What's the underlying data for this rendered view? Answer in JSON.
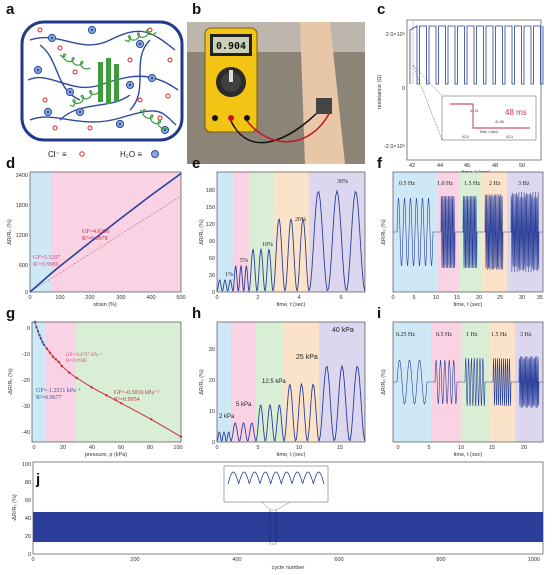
{
  "panels": {
    "a": {
      "label": "a",
      "legend_cl": "Cl⁻ ≡",
      "legend_h2o": "H₂O ≡"
    },
    "b": {
      "label": "b",
      "meter_reading": "0.904"
    },
    "c": {
      "label": "c",
      "ylabel": "resistance (Ω)",
      "xlabel": "time, t (sec)",
      "yticks": [
        "2.0×10⁵",
        "0",
        "-2.0×10⁵"
      ],
      "xticks": [
        "42",
        "44",
        "46",
        "48",
        "50"
      ],
      "inset_label": "48 ms",
      "inset_xticks": [
        "42.0",
        "42.3"
      ],
      "inset_xlabel": "time, t (sec)",
      "inset_marks": [
        "41.21",
        "41.96"
      ]
    },
    "d": {
      "label": "d",
      "ylabel": "ΔR/R₀ (%)",
      "xlabel": "strain (%)",
      "yticks": [
        "0",
        "600",
        "1200",
        "1800",
        "2400"
      ],
      "xticks": [
        "0",
        "100",
        "200",
        "300",
        "400",
        "500"
      ],
      "ann1_gf": "GF=5.3297",
      "ann1_r2": "R²=0.9986",
      "ann2_gf": "GF=4.6290",
      "ann2_r2": "R²=0.9978"
    },
    "e": {
      "label": "e",
      "ylabel": "ΔR/R₀ (%)",
      "xlabel": "time, t (sec)",
      "yticks": [
        "0",
        "30",
        "60",
        "90",
        "120",
        "150",
        "180"
      ],
      "xticks": [
        "0",
        "2",
        "4",
        "6"
      ],
      "levels": [
        "1%",
        "5%",
        "10%",
        "20%",
        "30%"
      ]
    },
    "f": {
      "label": "f",
      "ylabel": "ΔR/R₀ (%)",
      "xlabel": "time, t (sec)",
      "xticks": [
        "0",
        "5",
        "10",
        "15",
        "20",
        "25",
        "30",
        "35"
      ],
      "levels": [
        "0.5 Hz",
        "1.0 Hz",
        "1.5 Hz",
        "2 Hz",
        "3 Hz"
      ]
    },
    "g": {
      "label": "g",
      "ylabel": "-ΔR/R₀ (%)",
      "xlabel": "pressure, p (kPa)",
      "yticks": [
        "0",
        "-10",
        "-20",
        "-30",
        "-40"
      ],
      "xticks": [
        "0",
        "20",
        "40",
        "60",
        "80",
        "100"
      ],
      "ann1_gf": "GF=-1.2511 kPa⁻¹",
      "ann1_r2": "R²=0.9677",
      "ann2_gf": "GF=-0.4797 kPa⁻¹",
      "ann2_r2": "R²=0.9946",
      "ann3_gf": "GF=-0.3016 kPa⁻¹",
      "ann3_r2": "R²=0.9954"
    },
    "h": {
      "label": "h",
      "ylabel": "ΔR/R₀ (%)",
      "xlabel": "time, t (sec)",
      "yticks": [
        "0",
        "10",
        "20",
        "30"
      ],
      "xticks": [
        "0",
        "5",
        "10",
        "15"
      ],
      "levels": [
        "2 kPa",
        "5 kPa",
        "12.5 kPa",
        "25 kPa",
        "40 kPa"
      ]
    },
    "i": {
      "label": "i",
      "ylabel": "ΔR/R₀ (%)",
      "xlabel": "time, t (sec)",
      "xticks": [
        "0",
        "5",
        "10",
        "15",
        "20"
      ],
      "levels": [
        "0.25 Hz",
        "0.5 Hz",
        "1 Hz",
        "1.5 Hz",
        "3 Hz"
      ]
    },
    "j": {
      "label": "j",
      "ylabel": "-ΔR/R₀ (%)",
      "xlabel": "cycle number",
      "yticks": [
        "0",
        "20",
        "40",
        "60",
        "80",
        "100"
      ],
      "xticks": [
        "0",
        "200",
        "400",
        "600",
        "800",
        "1000"
      ]
    }
  },
  "colors": {
    "blue_band": "#cfe8f6",
    "pink_band": "#f9d3e3",
    "green_band": "#d9efd5",
    "orange_band": "#fbe3c9",
    "purple_band": "#dcd6ee",
    "signal": "#2b3f9a",
    "red_fit": "#c5283d",
    "pink_text": "#d04a85",
    "blue_text": "#3d4fa8"
  },
  "chart_data": [
    {
      "panel": "d",
      "type": "line",
      "xlabel": "strain (%)",
      "ylabel": "ΔR/R₀ (%)",
      "xlim": [
        0,
        500
      ],
      "ylim": [
        0,
        2400
      ],
      "x": [
        0,
        70,
        100,
        200,
        300,
        400,
        500
      ],
      "values": [
        0,
        370,
        520,
        1000,
        1470,
        1930,
        2370
      ]
    },
    {
      "panel": "g",
      "type": "scatter",
      "xlabel": "pressure, p (kPa)",
      "ylabel": "-ΔR/R₀ (%)",
      "xlim": [
        0,
        100
      ],
      "ylim": [
        -45,
        0
      ],
      "x": [
        2,
        3,
        4,
        5,
        6,
        7,
        8,
        10,
        12,
        14,
        16,
        18,
        20,
        25,
        30,
        40,
        50,
        60,
        80,
        100
      ],
      "values": [
        0,
        -2,
        -3.5,
        -5,
        -6.2,
        -7.5,
        -8.5,
        -10,
        -11.5,
        -13,
        -14,
        -15,
        -16.5,
        -19,
        -21,
        -24.5,
        -27.5,
        -30.5,
        -36.5,
        -43
      ]
    },
    {
      "panel": "e",
      "type": "line",
      "xlabel": "time, t (sec)",
      "ylabel": "ΔR/R₀ (%)",
      "series": [
        {
          "name": "1%",
          "peak": 20
        },
        {
          "name": "5%",
          "peak": 45
        },
        {
          "name": "10%",
          "peak": 75
        },
        {
          "name": "20%",
          "peak": 130
        },
        {
          "name": "30%",
          "peak": 180
        }
      ]
    },
    {
      "panel": "h",
      "type": "line",
      "xlabel": "time, t (sec)",
      "ylabel": "ΔR/R₀ (%)",
      "series": [
        {
          "name": "2 kPa",
          "peak": 3
        },
        {
          "name": "5 kPa",
          "peak": 6
        },
        {
          "name": "12.5 kPa",
          "peak": 12
        },
        {
          "name": "25 kPa",
          "peak": 19
        },
        {
          "name": "40 kPa",
          "peak": 25
        }
      ]
    }
  ]
}
